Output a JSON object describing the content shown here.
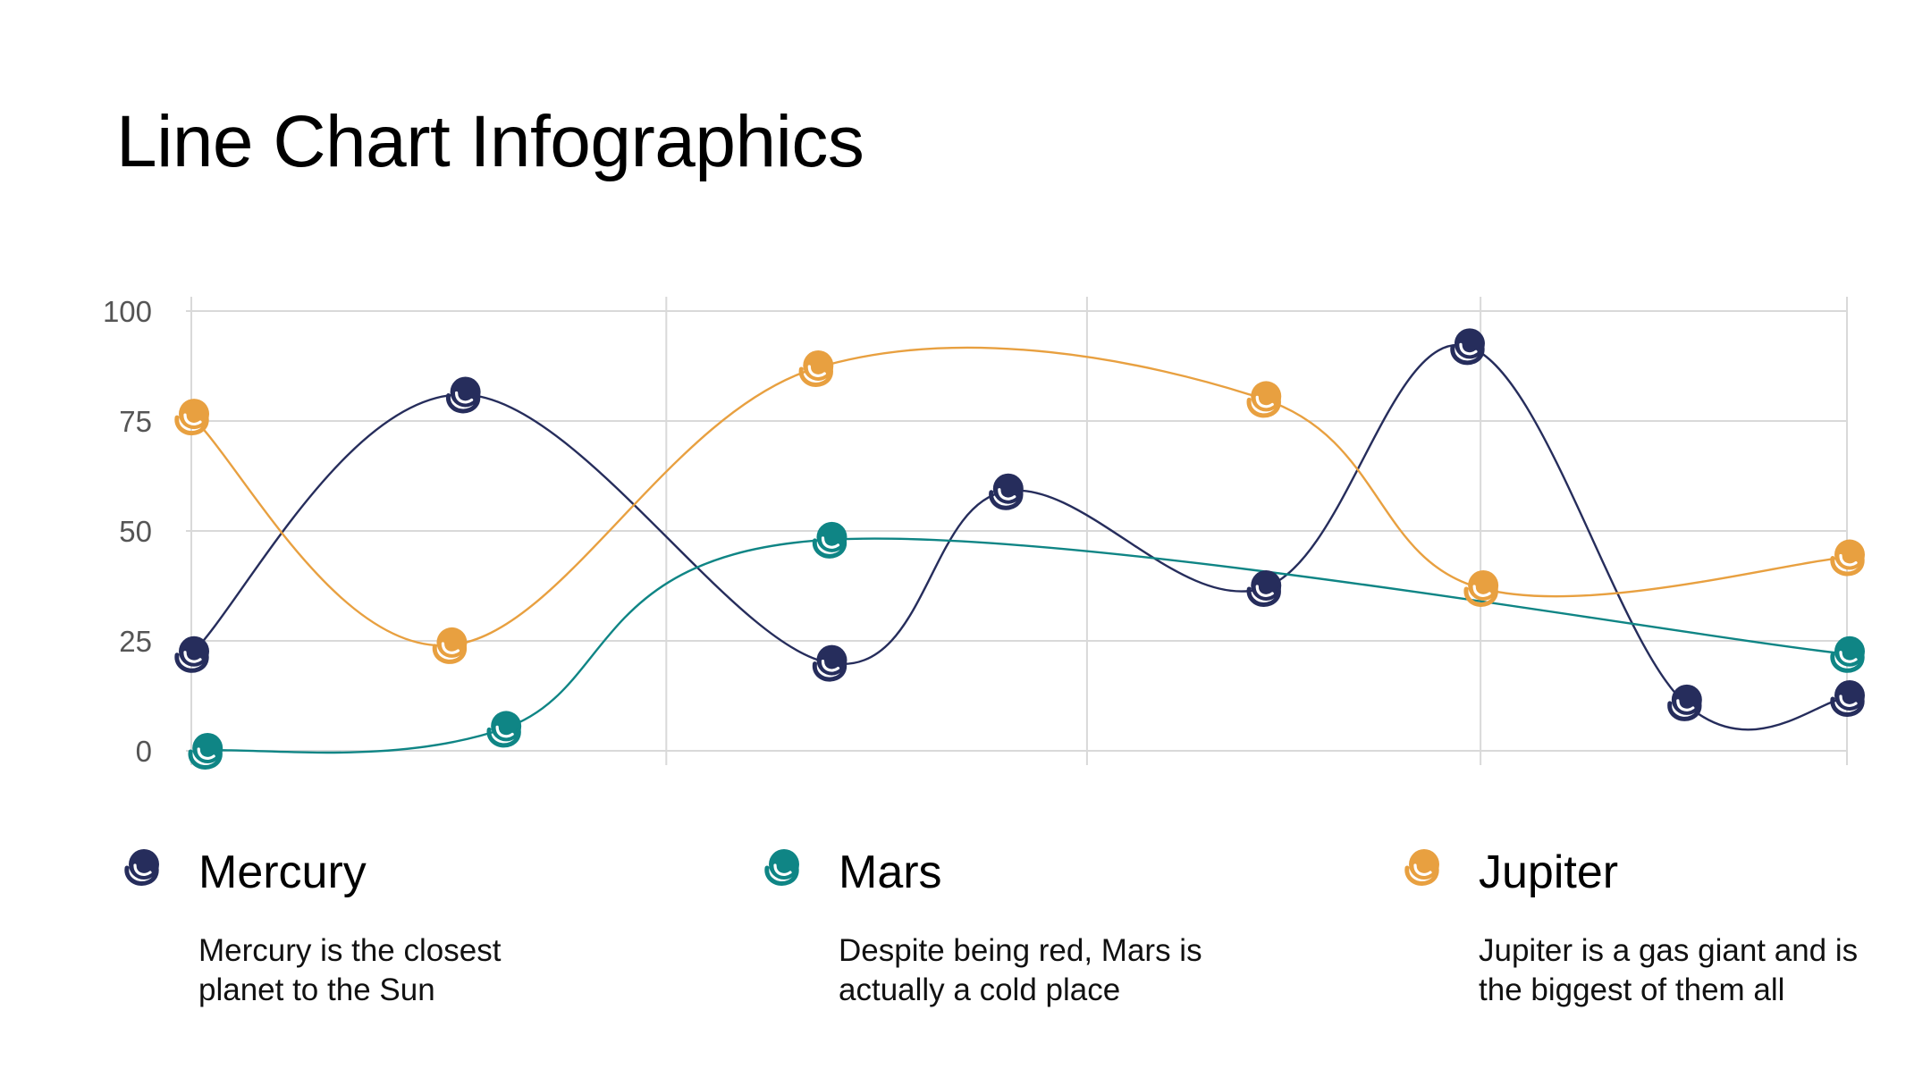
{
  "title": "Line Chart Infographics",
  "chart_data": {
    "type": "line",
    "title": "Line Chart Infographics",
    "xlabel": "",
    "ylabel": "",
    "ylim": [
      0,
      100
    ],
    "yticks": [
      0,
      25,
      50,
      75,
      100
    ],
    "grid": true,
    "series": [
      {
        "name": "Mercury",
        "color": "#262d5c",
        "points": [
          [
            0,
            22
          ],
          [
            1,
            81
          ],
          [
            2.35,
            20
          ],
          [
            3.0,
            59
          ],
          [
            3.95,
            37
          ],
          [
            4.7,
            92
          ],
          [
            5.5,
            11
          ],
          [
            6.1,
            12
          ]
        ]
      },
      {
        "name": "Mars",
        "color": "#0f8585",
        "points": [
          [
            0.05,
            0
          ],
          [
            1.15,
            5
          ],
          [
            2.35,
            48
          ],
          [
            6.1,
            22
          ]
        ]
      },
      {
        "name": "Jupiter",
        "color": "#e8a040",
        "points": [
          [
            0,
            76
          ],
          [
            0.95,
            24
          ],
          [
            2.3,
            87
          ],
          [
            3.95,
            80
          ],
          [
            4.75,
            37
          ],
          [
            6.1,
            44
          ]
        ]
      }
    ]
  },
  "legend": [
    {
      "name": "Mercury",
      "color": "#262d5c",
      "description": "Mercury is the closest planet to the Sun"
    },
    {
      "name": "Mars",
      "color": "#0f8585",
      "description": "Despite being red, Mars is actually a cold place"
    },
    {
      "name": "Jupiter",
      "color": "#e8a040",
      "description": "Jupiter is a gas giant and is the biggest of them all"
    }
  ]
}
